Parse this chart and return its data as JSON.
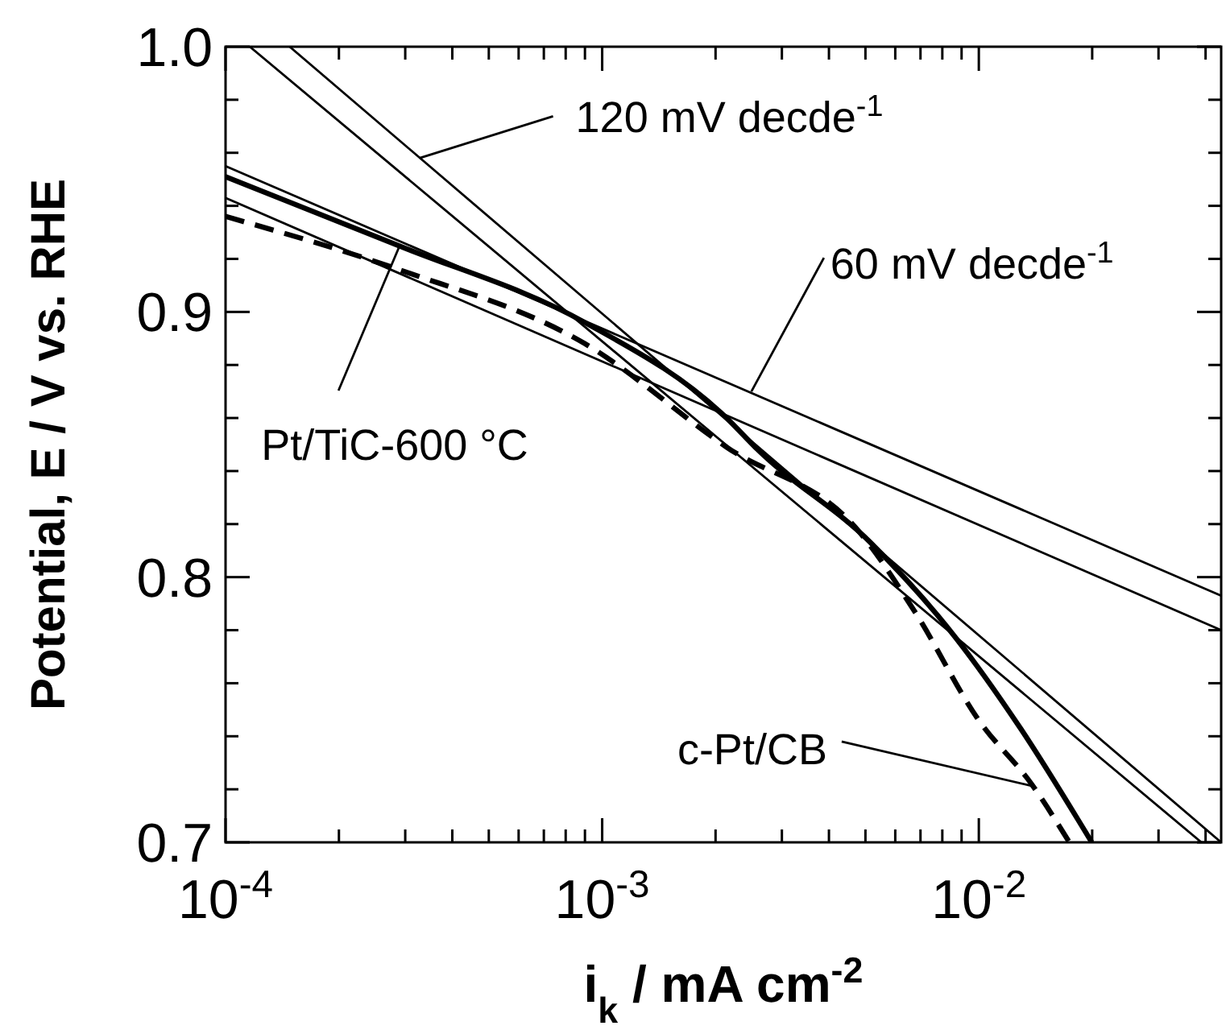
{
  "chart_data": {
    "type": "line",
    "xlabel": "i$_{k}$ / mA cm$^{-2}$",
    "ylabel": "Potential, E / V vs. RHE",
    "log": "x",
    "xlim": [
      0.0001,
      0.044
    ],
    "ylim": [
      0.7,
      1.0
    ],
    "xticks": [
      {
        "value": 0.0001,
        "label": "10$^{-4}$"
      },
      {
        "value": 0.0002,
        "label": null
      },
      {
        "value": 0.0003,
        "label": null
      },
      {
        "value": 0.0004,
        "label": null
      },
      {
        "value": 0.0005,
        "label": null
      },
      {
        "value": 0.0006,
        "label": null
      },
      {
        "value": 0.0007,
        "label": null
      },
      {
        "value": 0.0008,
        "label": null
      },
      {
        "value": 0.0009,
        "label": null
      },
      {
        "value": 0.001,
        "label": "10$^{-3}$"
      },
      {
        "value": 0.002,
        "label": null
      },
      {
        "value": 0.003,
        "label": null
      },
      {
        "value": 0.004,
        "label": null
      },
      {
        "value": 0.005,
        "label": null
      },
      {
        "value": 0.006,
        "label": null
      },
      {
        "value": 0.007,
        "label": null
      },
      {
        "value": 0.008,
        "label": null
      },
      {
        "value": 0.009,
        "label": null
      },
      {
        "value": 0.01,
        "label": "10$^{-2}$"
      },
      {
        "value": 0.02,
        "label": null
      },
      {
        "value": 0.03,
        "label": null
      },
      {
        "value": 0.04,
        "label": null
      }
    ],
    "yticks": [
      {
        "value": 0.7,
        "label": "0.7"
      },
      {
        "value": 0.72,
        "label": null
      },
      {
        "value": 0.74,
        "label": null
      },
      {
        "value": 0.76,
        "label": null
      },
      {
        "value": 0.78,
        "label": null
      },
      {
        "value": 0.8,
        "label": "0.8"
      },
      {
        "value": 0.82,
        "label": null
      },
      {
        "value": 0.84,
        "label": null
      },
      {
        "value": 0.86,
        "label": null
      },
      {
        "value": 0.88,
        "label": null
      },
      {
        "value": 0.9,
        "label": "0.9"
      },
      {
        "value": 0.92,
        "label": null
      },
      {
        "value": 0.94,
        "label": null
      },
      {
        "value": 0.96,
        "label": null
      },
      {
        "value": 0.98,
        "label": null
      },
      {
        "value": 1.0,
        "label": "1.0"
      }
    ],
    "grid": false,
    "series": [
      {
        "color": "#000000",
        "line_style": "solid",
        "x": [
          0.0001,
          0.000288,
          0.0009,
          0.00214,
          0.00259,
          0.00516,
          0.0087,
          0.0129,
          0.01995
        ],
        "values": [
          0.951,
          0.925,
          0.896,
          0.86,
          0.848,
          0.813,
          0.777,
          0.743,
          0.7
        ]
      },
      {
        "color": "#000000",
        "line_style": "dashed",
        "x": [
          0.0001,
          0.000288,
          0.0009,
          0.00214,
          0.00482,
          0.00676,
          0.01,
          0.0138,
          0.0174
        ],
        "values": [
          0.936,
          0.916,
          0.888,
          0.849,
          0.817,
          0.787,
          0.746,
          0.722,
          0.7
        ]
      },
      {
        "color": "#000000",
        "line_style": "solid",
        "x": [
          0.000116,
          0.039
        ],
        "values": [
          1.0,
          0.7
        ]
      },
      {
        "color": "#000000",
        "line_style": "solid",
        "x": [
          0.000148,
          0.044
        ],
        "values": [
          1.0,
          0.7
        ]
      },
      {
        "color": "#000000",
        "line_style": "solid",
        "x": [
          0.0001,
          0.044
        ],
        "values": [
          0.955,
          0.793
        ]
      },
      {
        "color": "#000000",
        "line_style": "solid",
        "x": [
          0.0001,
          0.044
        ],
        "values": [
          0.943,
          0.78
        ]
      }
    ],
    "annotations": [
      {
        "text": "120 mV decde$^{-1}$",
        "x": 0.000327,
        "y": 0.958
      },
      {
        "text": "60 mV decde$^{-1}$",
        "x": 0.00249,
        "y": 0.87
      },
      {
        "text": "Pt/TiC-600 °C",
        "x": 0.00029,
        "y": 0.925
      },
      {
        "text": "c-Pt/CB",
        "x": 0.0141,
        "y": 0.721
      }
    ]
  }
}
